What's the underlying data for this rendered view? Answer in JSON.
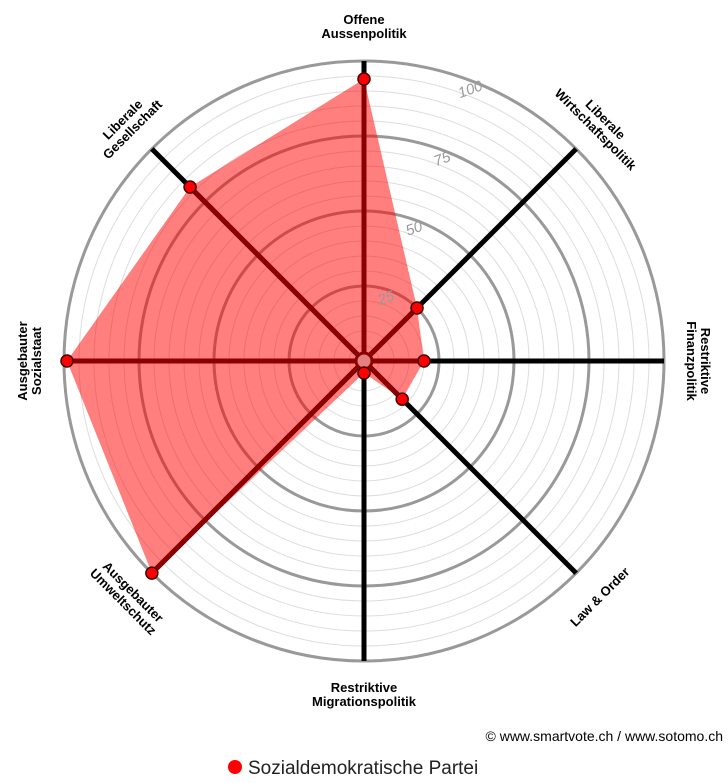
{
  "chart_data": {
    "type": "radar",
    "categories": [
      "Offene\nAussenpolitik",
      "Liberale\nWirtschaftspolitik",
      "Restriktive\nFinanzpolitik",
      "Law & Order",
      "Restriktive\nMigrationspolitik",
      "Ausgebauter\nUmweltschutz",
      "Ausgebauter\nSozialstaat",
      "Liberale\nGesellschaft"
    ],
    "series": [
      {
        "name": "Sozialdemokratische Partei",
        "color": "#ff0000",
        "values": [
          94,
          25,
          20,
          18,
          4,
          100,
          99,
          82
        ]
      }
    ],
    "ylim": [
      0,
      100
    ],
    "yticks": [
      25,
      50,
      75,
      100
    ],
    "grid": true,
    "credit": "© www.smartvote.ch / www.sotomo.ch"
  }
}
